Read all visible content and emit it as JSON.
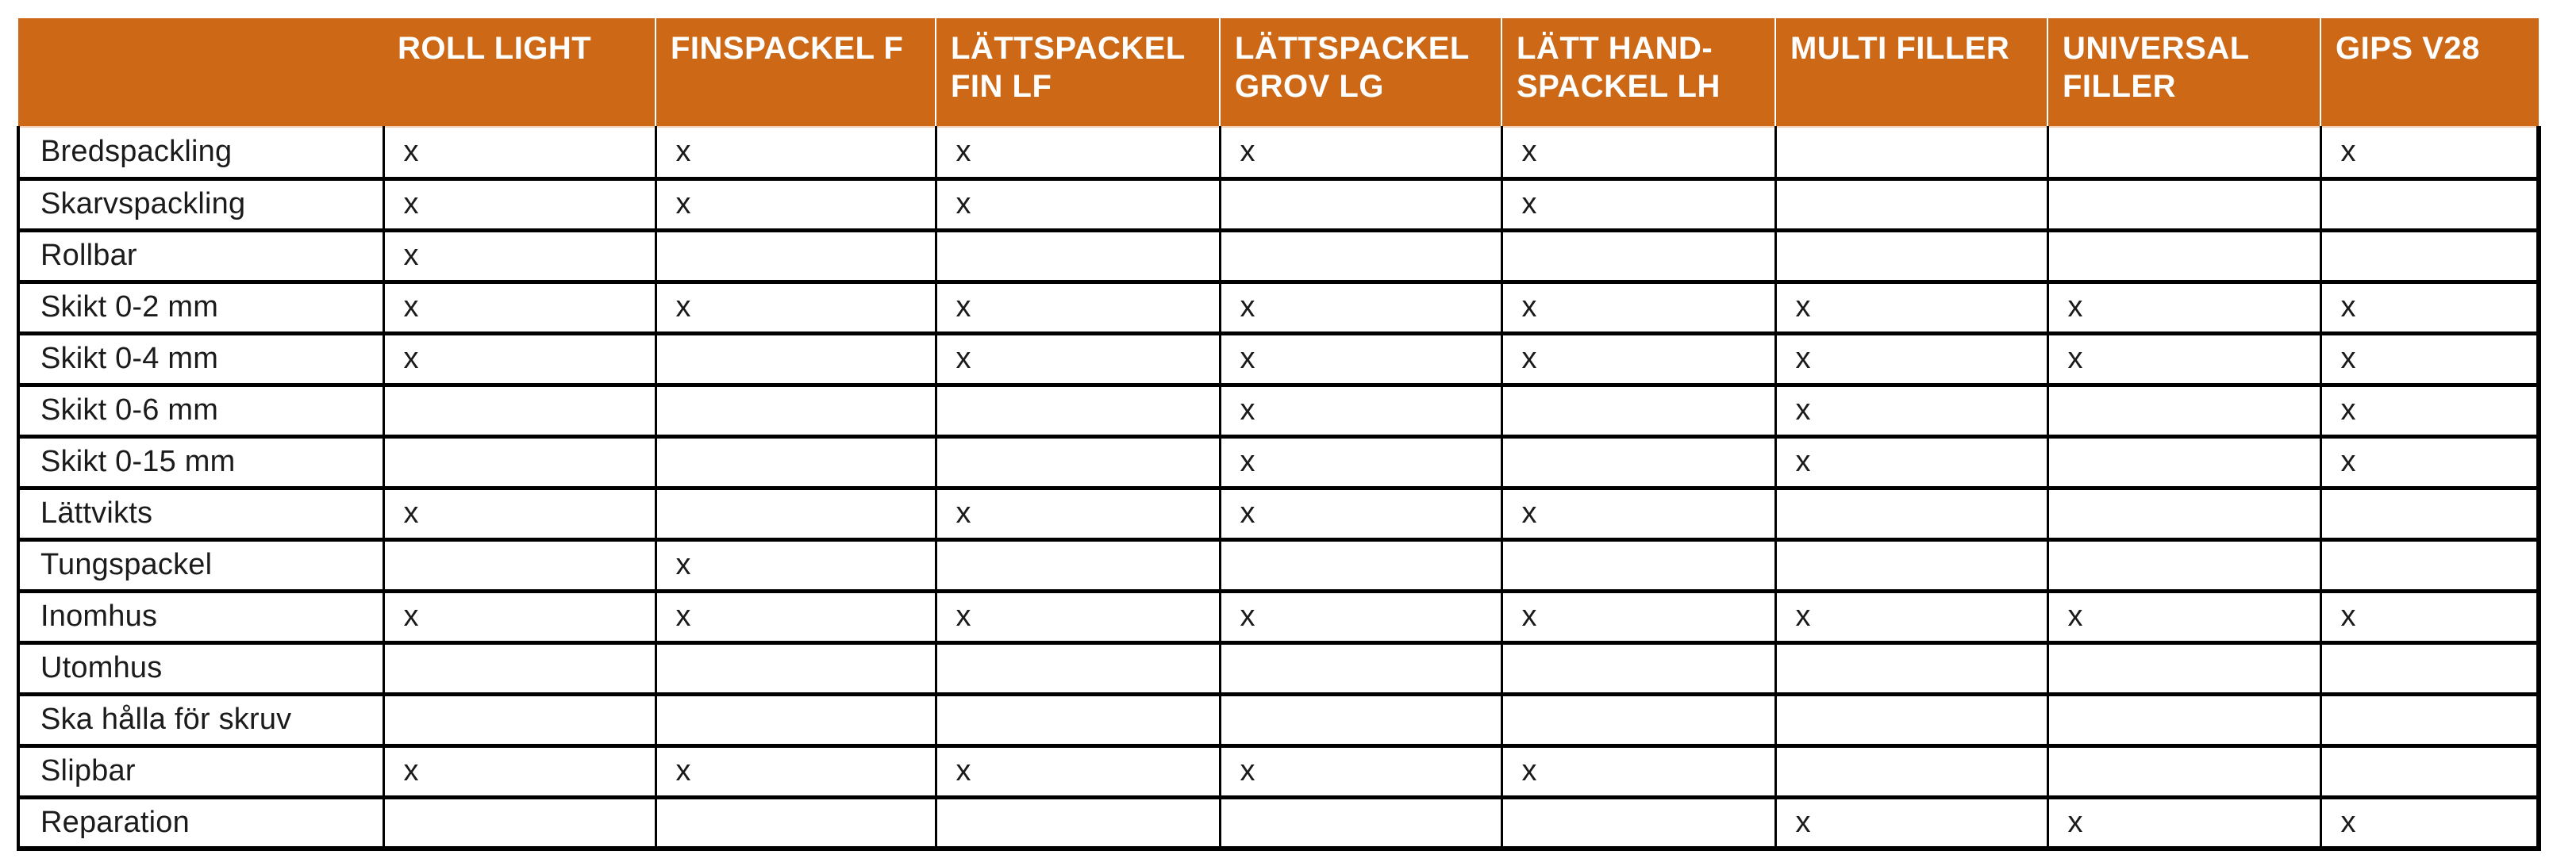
{
  "table": {
    "corner_label": "",
    "mark": "x",
    "colors": {
      "header_bg": "#cd6817",
      "header_text": "#ffffff",
      "grid_line": "#000000",
      "header_underline": "#f3d0b5"
    },
    "columns": [
      "ROLL LIGHT",
      "FINSPACKEL F",
      "LÄTTSPACKEL FIN LF",
      "LÄTTSPACKEL GROV LG",
      "LÄTT HAND-SPACKEL LH",
      "MULTI FILLER",
      "UNIVERSAL FILLER",
      "GIPS V28"
    ],
    "rows": [
      {
        "label": "Bredspackling",
        "marks": [
          1,
          1,
          1,
          1,
          1,
          0,
          0,
          1
        ]
      },
      {
        "label": "Skarvspackling",
        "marks": [
          1,
          1,
          1,
          0,
          1,
          0,
          0,
          0
        ]
      },
      {
        "label": "Rollbar",
        "marks": [
          1,
          0,
          0,
          0,
          0,
          0,
          0,
          0
        ]
      },
      {
        "label": "Skikt 0-2 mm",
        "marks": [
          1,
          1,
          1,
          1,
          1,
          1,
          1,
          1
        ]
      },
      {
        "label": "Skikt 0-4 mm",
        "marks": [
          1,
          0,
          1,
          1,
          1,
          1,
          1,
          1
        ]
      },
      {
        "label": "Skikt 0-6 mm",
        "marks": [
          0,
          0,
          0,
          1,
          0,
          1,
          0,
          1
        ]
      },
      {
        "label": "Skikt 0-15 mm",
        "marks": [
          0,
          0,
          0,
          1,
          0,
          1,
          0,
          1
        ]
      },
      {
        "label": "Lättvikts",
        "marks": [
          1,
          0,
          1,
          1,
          1,
          0,
          0,
          0
        ]
      },
      {
        "label": "Tungspackel",
        "marks": [
          0,
          1,
          0,
          0,
          0,
          0,
          0,
          0
        ]
      },
      {
        "label": "Inomhus",
        "marks": [
          1,
          1,
          1,
          1,
          1,
          1,
          1,
          1
        ]
      },
      {
        "label": "Utomhus",
        "marks": [
          0,
          0,
          0,
          0,
          0,
          0,
          0,
          0
        ]
      },
      {
        "label": "Ska hålla för skruv",
        "marks": [
          0,
          0,
          0,
          0,
          0,
          0,
          0,
          0
        ]
      },
      {
        "label": "Slipbar",
        "marks": [
          1,
          1,
          1,
          1,
          1,
          0,
          0,
          0
        ]
      },
      {
        "label": "Reparation",
        "marks": [
          0,
          0,
          0,
          0,
          0,
          1,
          1,
          1
        ]
      }
    ]
  }
}
